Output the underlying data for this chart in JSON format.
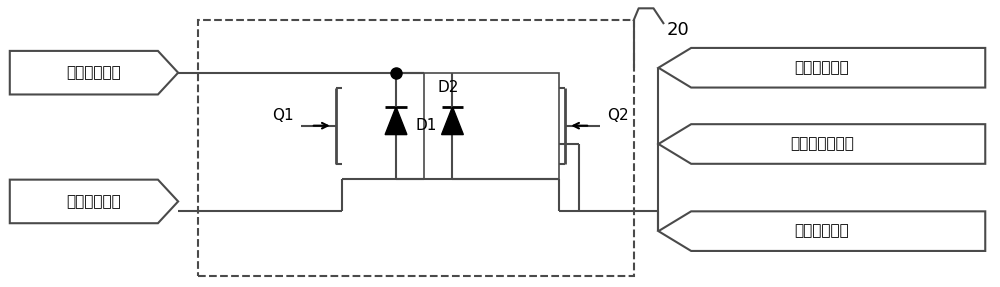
{
  "bg_color": "#ffffff",
  "lc": "#4a4a4a",
  "lw": 1.5,
  "font_size": 11,
  "left_label1": "低压正交换端",
  "left_label2": "低压负交换端",
  "right_label1": "前侧正变换端",
  "right_label2": "前侧中性变换端",
  "right_label3": "前侧负变换端",
  "label_20": "20",
  "q1_label": "Q1",
  "q2_label": "Q2",
  "d1_label": "D1",
  "d2_label": "D2"
}
